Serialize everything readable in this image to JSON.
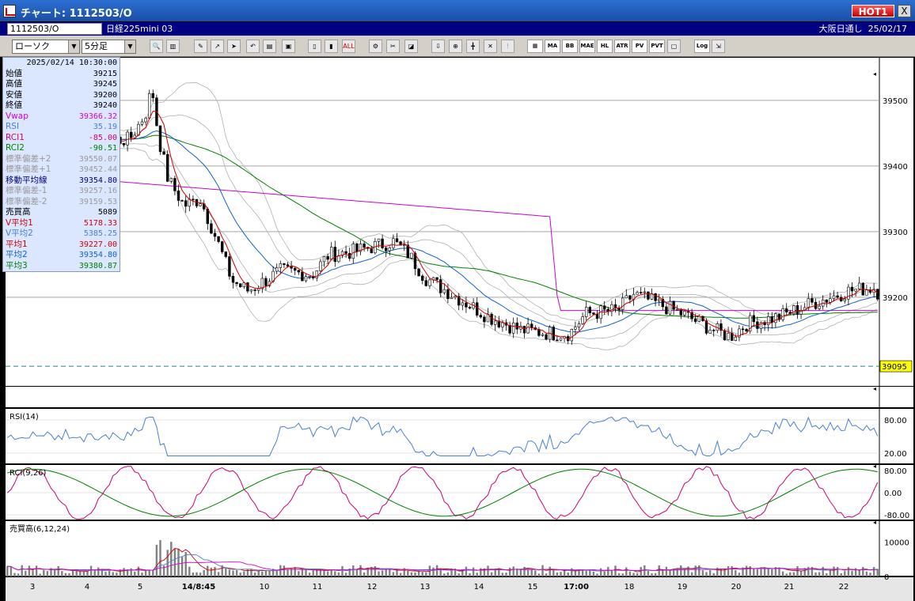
{
  "window": {
    "title": "チャート: 1112503/O",
    "hot_badge": "HOT1",
    "close_label": "X"
  },
  "symbol_bar": {
    "code": "1112503/O",
    "name": "日経225mini 03",
    "market": "大阪日通し",
    "date": "25/02/17"
  },
  "toolbar": {
    "chart_type": "ローソク",
    "timeframe": "5分足",
    "indicator_buttons": [
      "MA",
      "BB",
      "MAE",
      "HL",
      "ATR",
      "PV",
      "PVT"
    ],
    "log_label": "Log"
  },
  "info_panel": {
    "datetime": "2025/02/14 10:30:00",
    "rows": [
      {
        "label": "始値",
        "value": "39215",
        "color": "#000000"
      },
      {
        "label": "高値",
        "value": "39245",
        "color": "#000000"
      },
      {
        "label": "安値",
        "value": "39200",
        "color": "#000000"
      },
      {
        "label": "終値",
        "value": "39240",
        "color": "#000000"
      },
      {
        "label": "Vwap",
        "value": "39366.32",
        "color": "#d000d0"
      },
      {
        "label": "RSI",
        "value": "35.19",
        "color": "#4a7fd4"
      },
      {
        "label": "RCI1",
        "value": "-85.00",
        "color": "#d00070"
      },
      {
        "label": "RCI2",
        "value": "-90.51",
        "color": "#008000"
      },
      {
        "label": "標準偏差+2",
        "value": "39550.07",
        "color": "#999999"
      },
      {
        "label": "標準偏差+1",
        "value": "39452.44",
        "color": "#999999"
      },
      {
        "label": "移動平均線",
        "value": "39354.80",
        "color": "#00007a"
      },
      {
        "label": "標準偏差-1",
        "value": "39257.16",
        "color": "#999999"
      },
      {
        "label": "標準偏差-2",
        "value": "39159.53",
        "color": "#999999"
      },
      {
        "label": "売買高",
        "value": "5089",
        "color": "#000000"
      },
      {
        "label": "V平均1",
        "value": "5178.33",
        "color": "#d00000"
      },
      {
        "label": "V平均2",
        "value": "5385.25",
        "color": "#4a7fd4"
      },
      {
        "label": "平均1",
        "value": "39227.00",
        "color": "#d00000"
      },
      {
        "label": "平均2",
        "value": "39354.80",
        "color": "#1060d0"
      },
      {
        "label": "平均3",
        "value": "39380.87",
        "color": "#008000"
      }
    ]
  },
  "chart_data": [
    {
      "type": "candlestick",
      "yaxis_ticks": [
        39500,
        39400,
        39300,
        39200
      ],
      "ylim": [
        39065,
        39565
      ],
      "current_price": "39095",
      "x_ticks": [
        "3",
        "4",
        "5",
        "14/8:45",
        "10",
        "11",
        "12",
        "13",
        "14",
        "15",
        "17:00",
        "18",
        "19",
        "20",
        "21",
        "22"
      ],
      "candle_count": 240,
      "colors": {
        "bull": "#ffffff",
        "bear": "#000000",
        "ma1": "#d00000",
        "ma2": "#1060d0",
        "ma3": "#008000",
        "vwap": "#d000d0",
        "bb": "#b0b0b0"
      }
    },
    {
      "type": "line",
      "title": "RSI(14)",
      "ylim": [
        0,
        100
      ],
      "yaxis_ticks": [
        "80.00",
        "20.00"
      ],
      "color": "#4a7fd4"
    },
    {
      "type": "line",
      "title": "RCI(9,26)",
      "ylim": [
        -100,
        100
      ],
      "yaxis_ticks": [
        "80.00",
        "0.00",
        "-80.00"
      ],
      "series": [
        {
          "color": "#d00070"
        },
        {
          "color": "#008000"
        }
      ]
    },
    {
      "type": "bar",
      "title": "売買高(6,12,24)",
      "yaxis_ticks": [
        "10000",
        "0"
      ],
      "ylim": [
        0,
        16000
      ],
      "color": "#808080"
    }
  ]
}
